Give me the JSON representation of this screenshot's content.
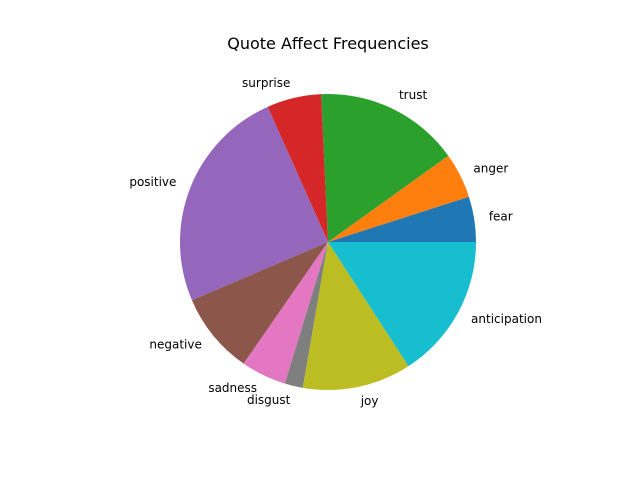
{
  "chart_data": {
    "type": "pie",
    "title": "Quote Affect Frequencies",
    "start_angle_deg": 0,
    "direction": "counterclockwise",
    "slices": [
      {
        "label": "fear",
        "value": 5,
        "color": "#1f77b4"
      },
      {
        "label": "anger",
        "value": 5,
        "color": "#ff7f0e"
      },
      {
        "label": "trust",
        "value": 16,
        "color": "#2ca02c"
      },
      {
        "label": "surprise",
        "value": 6,
        "color": "#d62728"
      },
      {
        "label": "positive",
        "value": 25,
        "color": "#9467bd"
      },
      {
        "label": "negative",
        "value": 9,
        "color": "#8c564b"
      },
      {
        "label": "sadness",
        "value": 5,
        "color": "#e377c2"
      },
      {
        "label": "disgust",
        "value": 2,
        "color": "#7f7f7f"
      },
      {
        "label": "joy",
        "value": 12,
        "color": "#bcbd22"
      },
      {
        "label": "anticipation",
        "value": 16,
        "color": "#17becf"
      }
    ]
  }
}
